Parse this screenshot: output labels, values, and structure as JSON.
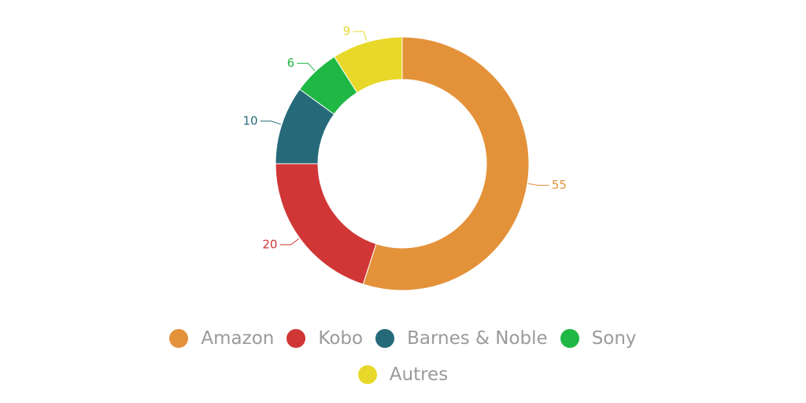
{
  "chart_data": {
    "type": "pie",
    "donut": true,
    "categories": [
      "Amazon",
      "Kobo",
      "Barnes & Noble",
      "Sony",
      "Autres"
    ],
    "values": [
      55,
      20,
      10,
      6,
      9
    ],
    "colors": [
      "#e3923a",
      "#d13636",
      "#266a7a",
      "#1fb844",
      "#e8d82a"
    ],
    "legend": "bottom"
  }
}
